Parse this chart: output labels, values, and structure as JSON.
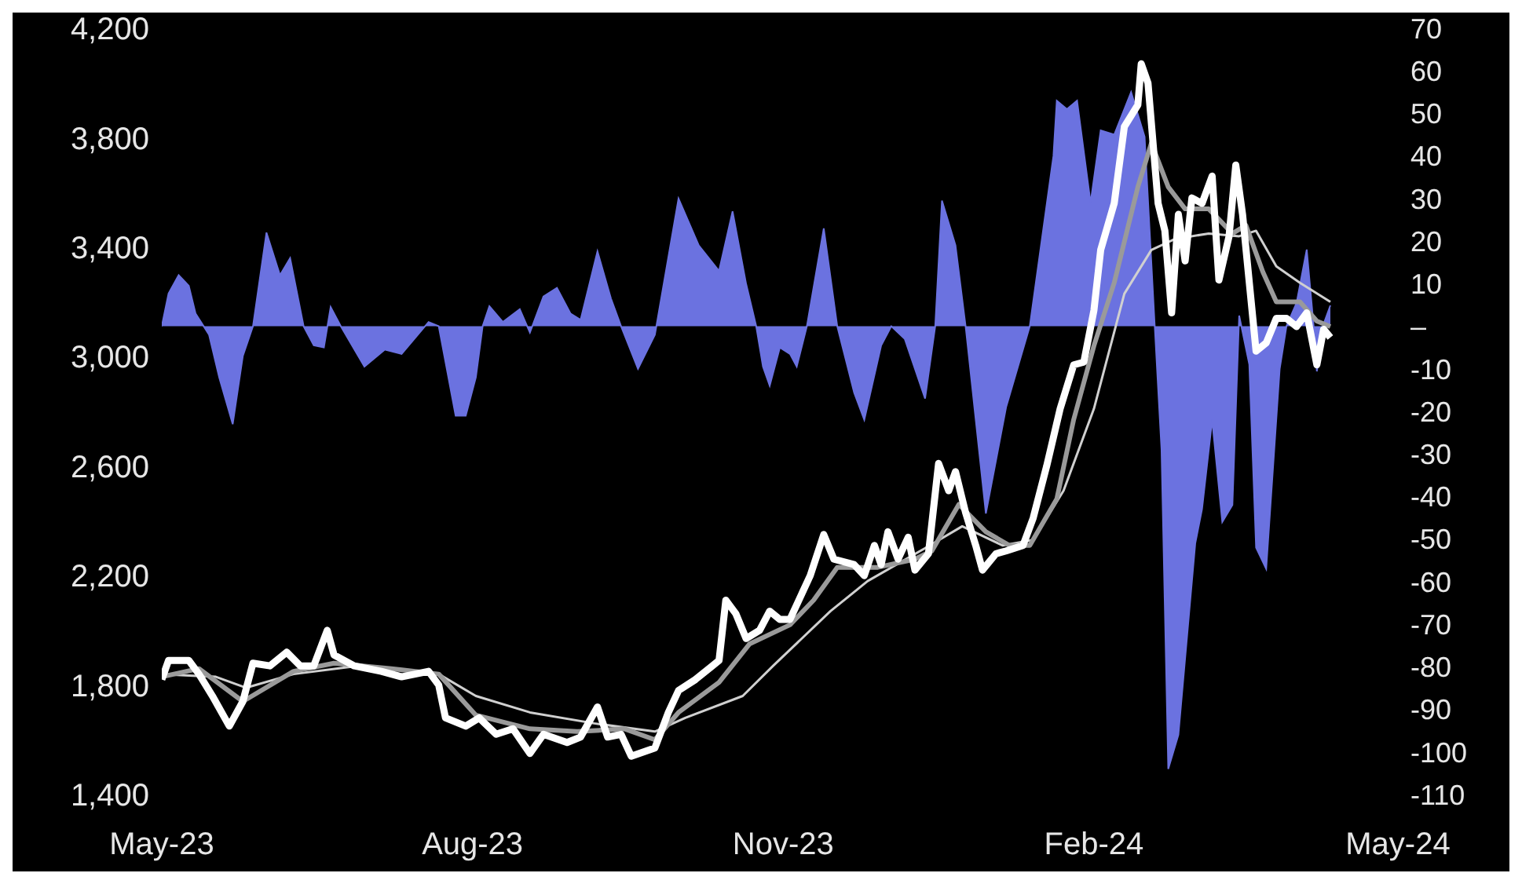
{
  "chart_data": {
    "type": "line",
    "grid": false,
    "xlim": [
      "2023-05-01",
      "2024-05-01"
    ],
    "xticks": [
      {
        "value": "2023-05-01",
        "label": "May-23"
      },
      {
        "value": "2023-08-01",
        "label": "Aug-23"
      },
      {
        "value": "2023-11-01",
        "label": "Nov-23"
      },
      {
        "value": "2024-02-01",
        "label": "Feb-24"
      },
      {
        "value": "2024-05-01",
        "label": "May-24"
      }
    ],
    "ylim": [
      1400,
      4200
    ],
    "yticks": [
      {
        "value": 1400,
        "label": "1,400"
      },
      {
        "value": 1800,
        "label": "1,800"
      },
      {
        "value": 2200,
        "label": "2,200"
      },
      {
        "value": 2600,
        "label": "2,600"
      },
      {
        "value": 3000,
        "label": "3,000"
      },
      {
        "value": 3400,
        "label": "3,400"
      },
      {
        "value": 3800,
        "label": "3,800"
      },
      {
        "value": 4200,
        "label": "4,200"
      }
    ],
    "y2lim": [
      -110,
      70
    ],
    "y2ticks": [
      -110,
      -100,
      -90,
      -80,
      -70,
      -60,
      -50,
      -40,
      -30,
      -20,
      -10,
      {
        "value": 0,
        "label": "–"
      },
      10,
      20,
      30,
      40,
      50,
      60,
      70
    ],
    "series": [
      {
        "type": "area",
        "axis": "y2",
        "color": "#6b72e0",
        "x": [
          "2023-05-01",
          "2023-05-03",
          "2023-05-06",
          "2023-05-09",
          "2023-05-11",
          "2023-05-15",
          "2023-05-18",
          "2023-05-22",
          "2023-05-25",
          "2023-05-28",
          "2023-06-01",
          "2023-06-05",
          "2023-06-08",
          "2023-06-12",
          "2023-06-15",
          "2023-06-18",
          "2023-06-20",
          "2023-06-23",
          "2023-06-30",
          "2023-07-06",
          "2023-07-11",
          "2023-07-19",
          "2023-07-22",
          "2023-07-27",
          "2023-07-30",
          "2023-08-02",
          "2023-08-04",
          "2023-08-06",
          "2023-08-10",
          "2023-08-15",
          "2023-08-18",
          "2023-08-22",
          "2023-08-26",
          "2023-08-30",
          "2023-09-02",
          "2023-09-07",
          "2023-09-11",
          "2023-09-14",
          "2023-09-19",
          "2023-09-24",
          "2023-10-01",
          "2023-10-07",
          "2023-10-13",
          "2023-10-17",
          "2023-10-21",
          "2023-10-24",
          "2023-10-26",
          "2023-10-28",
          "2023-10-31",
          "2023-11-03",
          "2023-11-05",
          "2023-11-08",
          "2023-11-13",
          "2023-11-17",
          "2023-11-22",
          "2023-11-25",
          "2023-11-30",
          "2023-12-03",
          "2023-12-07",
          "2023-12-13",
          "2023-12-16",
          "2023-12-18",
          "2023-12-22",
          "2023-12-25",
          "2023-12-31",
          "2024-01-06",
          "2024-01-13",
          "2024-01-20",
          "2024-01-21",
          "2024-01-24",
          "2024-01-27",
          "2024-01-31",
          "2024-02-03",
          "2024-02-07",
          "2024-02-12",
          "2024-02-16",
          "2024-02-19",
          "2024-02-21",
          "2024-02-23",
          "2024-02-26",
          "2024-03-02",
          "2024-03-04",
          "2024-03-07",
          "2024-03-10",
          "2024-03-13",
          "2024-03-15",
          "2024-03-18",
          "2024-03-20",
          "2024-03-23",
          "2024-03-27",
          "2024-03-29",
          "2024-04-01",
          "2024-04-04",
          "2024-04-06",
          "2024-04-07",
          "2024-04-09",
          "2024-04-11"
        ],
        "values": [
          0,
          7.7,
          12,
          9.5,
          3,
          -2,
          -12,
          -23,
          -7,
          0,
          22,
          12,
          16,
          0,
          -4.5,
          -5,
          4.5,
          0,
          -9.5,
          -5.5,
          -6.5,
          1,
          0,
          -21,
          -21,
          -12,
          0,
          4.7,
          1,
          4,
          -1.5,
          7,
          9,
          3,
          1.5,
          17.6,
          6.5,
          0,
          -10,
          -2,
          30,
          19,
          13,
          27,
          10,
          0,
          -9.5,
          -14,
          -5,
          -6.5,
          -9.5,
          0,
          23,
          0,
          -15.6,
          -22,
          -4.5,
          0,
          -3,
          -17,
          0,
          29.5,
          19,
          0,
          -44,
          -19,
          0,
          40,
          53,
          51,
          53,
          29,
          46,
          45,
          55,
          44.5,
          0,
          -29,
          -104,
          -96,
          -51,
          -43,
          -22,
          -46,
          -42,
          2.5,
          -9,
          -52,
          -57,
          -10,
          0,
          5.5,
          18,
          0.5,
          -10.6,
          0.5,
          4.9
        ]
      },
      {
        "color": "#d0d0d0",
        "x": [
          "2023-05-01",
          "2023-05-17",
          "2023-05-26",
          "2023-06-09",
          "2023-06-28",
          "2023-07-22",
          "2023-08-02",
          "2023-08-18",
          "2023-09-06",
          "2023-09-24",
          "2023-10-03",
          "2023-10-20",
          "2023-10-29",
          "2023-11-15",
          "2023-11-26",
          "2023-12-13",
          "2023-12-24",
          "2024-01-05",
          "2024-01-14",
          "2024-01-23",
          "2024-02-01",
          "2024-02-10",
          "2024-02-18",
          "2024-02-25",
          "2024-03-06",
          "2024-03-15",
          "2024-03-20",
          "2024-03-26",
          "2024-04-02",
          "2024-04-11"
        ],
        "values": [
          1840,
          1830,
          1790,
          1840,
          1870,
          1840,
          1760,
          1700,
          1660,
          1630,
          1680,
          1760,
          1870,
          2070,
          2180,
          2300,
          2380,
          2310,
          2330,
          2510,
          2810,
          3230,
          3390,
          3430,
          3450,
          3440,
          3460,
          3330,
          3270,
          3200
        ]
      },
      {
        "color": "#9a9a9a",
        "x": [
          "2023-05-01",
          "2023-05-12",
          "2023-05-25",
          "2023-06-09",
          "2023-06-21",
          "2023-07-08",
          "2023-07-22",
          "2023-08-02",
          "2023-08-18",
          "2023-09-01",
          "2023-09-15",
          "2023-09-24",
          "2023-10-01",
          "2023-10-13",
          "2023-10-22",
          "2023-11-03",
          "2023-11-10",
          "2023-11-17",
          "2023-11-29",
          "2023-12-10",
          "2023-12-15",
          "2023-12-23",
          "2023-12-31",
          "2024-01-07",
          "2024-01-13",
          "2024-01-21",
          "2024-01-26",
          "2024-02-01",
          "2024-02-07",
          "2024-02-14",
          "2024-02-18",
          "2024-02-23",
          "2024-02-28",
          "2024-03-06",
          "2024-03-13",
          "2024-03-17",
          "2024-03-22",
          "2024-03-26",
          "2024-04-02",
          "2024-04-07",
          "2024-04-11"
        ],
        "values": [
          1830,
          1860,
          1740,
          1850,
          1880,
          1860,
          1840,
          1690,
          1640,
          1630,
          1640,
          1600,
          1700,
          1810,
          1950,
          2020,
          2110,
          2230,
          2230,
          2260,
          2290,
          2460,
          2360,
          2310,
          2310,
          2480,
          2770,
          3040,
          3270,
          3620,
          3780,
          3620,
          3540,
          3540,
          3450,
          3480,
          3310,
          3200,
          3200,
          3130,
          3110
        ]
      },
      {
        "color": "#ffffff",
        "x": [
          "2023-05-01",
          "2023-05-03",
          "2023-05-09",
          "2023-05-12",
          "2023-05-16",
          "2023-05-21",
          "2023-05-25",
          "2023-05-28",
          "2023-06-02",
          "2023-06-07",
          "2023-06-11",
          "2023-06-15",
          "2023-06-19",
          "2023-06-21",
          "2023-06-27",
          "2023-07-05",
          "2023-07-11",
          "2023-07-19",
          "2023-07-22",
          "2023-07-24",
          "2023-07-30",
          "2023-08-03",
          "2023-08-08",
          "2023-08-13",
          "2023-08-18",
          "2023-08-22",
          "2023-08-29",
          "2023-09-02",
          "2023-09-07",
          "2023-09-10",
          "2023-09-14",
          "2023-09-17",
          "2023-09-24",
          "2023-09-28",
          "2023-10-01",
          "2023-10-06",
          "2023-10-11",
          "2023-10-13",
          "2023-10-15",
          "2023-10-18",
          "2023-10-21",
          "2023-10-25",
          "2023-10-28",
          "2023-10-31",
          "2023-11-03",
          "2023-11-09",
          "2023-11-13",
          "2023-11-16",
          "2023-11-22",
          "2023-11-25",
          "2023-11-28",
          "2023-11-30",
          "2023-12-02",
          "2023-12-05",
          "2023-12-08",
          "2023-12-10",
          "2023-12-14",
          "2023-12-17",
          "2023-12-20",
          "2023-12-22",
          "2023-12-25",
          "2023-12-28",
          "2023-12-30",
          "2024-01-03",
          "2024-01-06",
          "2024-01-11",
          "2024-01-14",
          "2024-01-18",
          "2024-01-22",
          "2024-01-26",
          "2024-01-29",
          "2024-02-01",
          "2024-02-03",
          "2024-02-07",
          "2024-02-10",
          "2024-02-14",
          "2024-02-15",
          "2024-02-17",
          "2024-02-20",
          "2024-02-22",
          "2024-02-24",
          "2024-02-26",
          "2024-02-28",
          "2024-03-01",
          "2024-03-04",
          "2024-03-07",
          "2024-03-09",
          "2024-03-12",
          "2024-03-14",
          "2024-03-16",
          "2024-03-20",
          "2024-03-23",
          "2024-03-26",
          "2024-03-29",
          "2024-04-01",
          "2024-04-04",
          "2024-04-07",
          "2024-04-09",
          "2024-04-11"
        ],
        "values": [
          1820,
          1890,
          1890,
          1840,
          1760,
          1650,
          1740,
          1880,
          1870,
          1920,
          1870,
          1870,
          2000,
          1910,
          1870,
          1850,
          1830,
          1850,
          1800,
          1680,
          1650,
          1680,
          1620,
          1640,
          1550,
          1620,
          1590,
          1610,
          1720,
          1610,
          1620,
          1540,
          1570,
          1700,
          1780,
          1820,
          1870,
          1890,
          2110,
          2060,
          1970,
          2000,
          2070,
          2040,
          2040,
          2200,
          2350,
          2260,
          2240,
          2200,
          2310,
          2240,
          2360,
          2260,
          2340,
          2220,
          2280,
          2610,
          2510,
          2580,
          2430,
          2310,
          2220,
          2280,
          2290,
          2310,
          2410,
          2600,
          2810,
          2970,
          2980,
          3170,
          3390,
          3560,
          3840,
          3920,
          4070,
          4000,
          3560,
          3460,
          3160,
          3520,
          3350,
          3580,
          3560,
          3660,
          3280,
          3440,
          3700,
          3520,
          3020,
          3050,
          3140,
          3140,
          3110,
          3160,
          2970,
          3100,
          3070
        ]
      }
    ]
  }
}
